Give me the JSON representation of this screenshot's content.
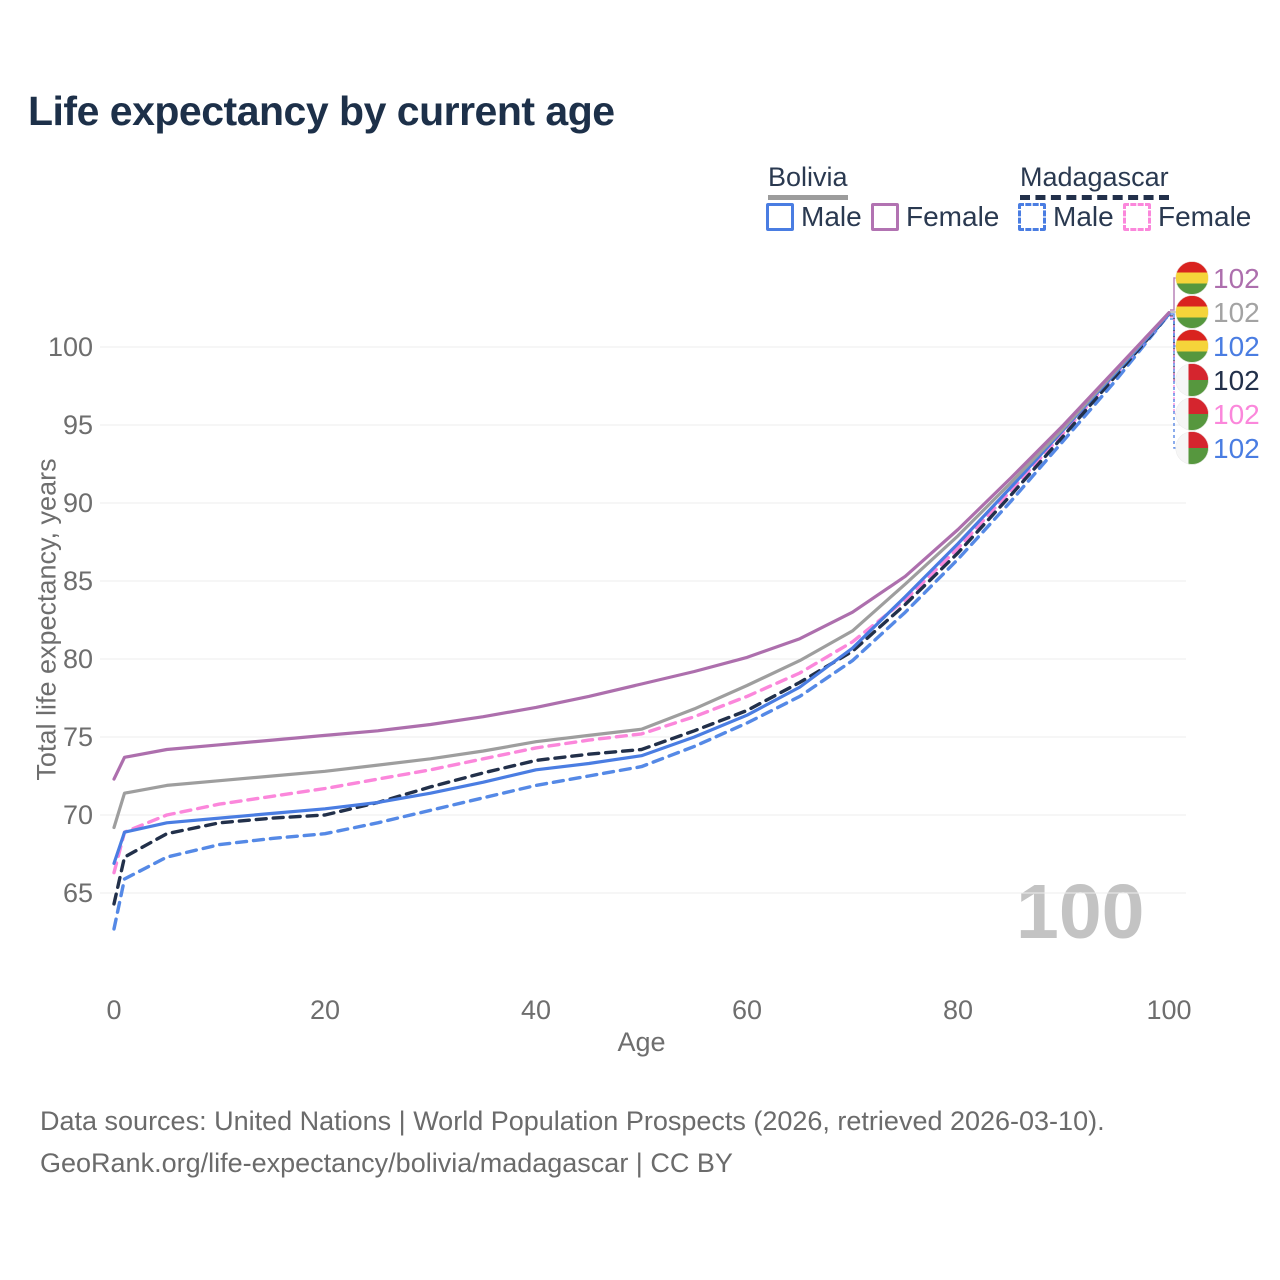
{
  "header": {
    "title": "Life expectancy by current age"
  },
  "legend": {
    "groups": [
      {
        "label": "Bolivia",
        "line_style": "solid",
        "underline_color": "#9c9c9c",
        "items": [
          {
            "label": "Male",
            "color": "#4a7de2",
            "dash": false
          },
          {
            "label": "Female",
            "color": "#b273b2",
            "dash": false
          }
        ]
      },
      {
        "label": "Madagascar",
        "line_style": "dashed",
        "underline_color": "#22304a",
        "items": [
          {
            "label": "Male",
            "color": "#4a7de2",
            "dash": true
          },
          {
            "label": "Female",
            "color": "#fb87db",
            "dash": true
          }
        ]
      }
    ]
  },
  "chart_data": {
    "type": "line",
    "title": "Life expectancy by current age",
    "watermark": "100",
    "x": {
      "label": "Age",
      "min": 0,
      "max": 100,
      "ticks": [
        0,
        20,
        40,
        60,
        80,
        100
      ]
    },
    "y": {
      "label": "Total life expectancy, years",
      "min": 62,
      "max": 103,
      "ticks": [
        65,
        70,
        75,
        80,
        85,
        90,
        95,
        100
      ],
      "grid": true
    },
    "ages": [
      0,
      1,
      5,
      10,
      15,
      20,
      25,
      30,
      35,
      40,
      45,
      50,
      55,
      60,
      65,
      70,
      75,
      80,
      85,
      90,
      95,
      100
    ],
    "series": [
      {
        "id": "bolivia-female",
        "country": "Bolivia",
        "sex": "Female",
        "color": "#ad6fad",
        "dash": false,
        "values": [
          72.3,
          73.7,
          74.2,
          74.5,
          74.8,
          75.1,
          75.4,
          75.8,
          76.3,
          76.9,
          77.6,
          78.4,
          79.2,
          80.1,
          81.3,
          83.0,
          85.3,
          88.3,
          91.6,
          95.0,
          98.6,
          102.2
        ]
      },
      {
        "id": "bolivia-all",
        "country": "Bolivia",
        "sex": "All",
        "color": "#9e9e9e",
        "dash": false,
        "values": [
          69.2,
          71.4,
          71.9,
          72.2,
          72.5,
          72.8,
          73.2,
          73.6,
          74.1,
          74.7,
          75.1,
          75.5,
          76.8,
          78.3,
          79.9,
          81.8,
          84.8,
          87.9,
          91.3,
          94.8,
          98.5,
          102.2
        ]
      },
      {
        "id": "bolivia-male",
        "country": "Bolivia",
        "sex": "Male",
        "color": "#4a7de2",
        "dash": false,
        "values": [
          66.9,
          68.9,
          69.5,
          69.8,
          70.1,
          70.4,
          70.8,
          71.4,
          72.1,
          72.9,
          73.3,
          73.8,
          75.0,
          76.4,
          78.2,
          80.7,
          84.0,
          87.4,
          91.0,
          94.7,
          98.4,
          102.1
        ]
      },
      {
        "id": "madagascar-all",
        "country": "Madagascar",
        "sex": "All",
        "color": "#22304a",
        "dash": true,
        "values": [
          64.3,
          67.3,
          68.8,
          69.5,
          69.8,
          70.0,
          70.8,
          71.8,
          72.7,
          73.5,
          73.9,
          74.2,
          75.4,
          76.7,
          78.5,
          80.5,
          83.5,
          86.8,
          90.5,
          94.3,
          98.2,
          102.1
        ]
      },
      {
        "id": "madagascar-female",
        "country": "Madagascar",
        "sex": "Female",
        "color": "#fb87db",
        "dash": true,
        "values": [
          66.3,
          68.9,
          70.0,
          70.7,
          71.2,
          71.7,
          72.3,
          72.9,
          73.6,
          74.3,
          74.8,
          75.2,
          76.3,
          77.6,
          79.1,
          81.1,
          83.8,
          87.1,
          90.8,
          94.5,
          98.3,
          102.1
        ]
      },
      {
        "id": "madagascar-male",
        "country": "Madagascar",
        "sex": "Male",
        "color": "#5589e6",
        "dash": true,
        "values": [
          62.7,
          65.9,
          67.3,
          68.1,
          68.5,
          68.8,
          69.5,
          70.3,
          71.1,
          71.9,
          72.5,
          73.1,
          74.4,
          75.9,
          77.6,
          79.9,
          83.0,
          86.4,
          90.1,
          94.0,
          97.9,
          102.1
        ]
      }
    ],
    "end_labels": [
      {
        "value": "102",
        "color": "#ad6fad",
        "flag": "bolivia",
        "dash": false
      },
      {
        "value": "102",
        "color": "#a3a3a3",
        "flag": "bolivia",
        "dash": false
      },
      {
        "value": "102",
        "color": "#4a7de2",
        "flag": "bolivia",
        "dash": false
      },
      {
        "value": "102",
        "color": "#22304a",
        "flag": "madagascar",
        "dash": true
      },
      {
        "value": "102",
        "color": "#fb87db",
        "flag": "madagascar",
        "dash": true
      },
      {
        "value": "102",
        "color": "#4a7de2",
        "flag": "madagascar",
        "dash": true
      }
    ],
    "flag_colors": {
      "bolivia": {
        "red": "#d9231f",
        "yellow": "#f5d43a",
        "green": "#55973e"
      },
      "madagascar": {
        "white": "#f6f6f6",
        "red": "#d5252e",
        "green": "#56973e"
      }
    }
  },
  "footer": {
    "line1": "Data sources: United Nations | World Population Prospects (2026, retrieved 2026-03-10).",
    "line2": "GeoRank.org/life-expectancy/bolivia/madagascar | CC BY"
  }
}
